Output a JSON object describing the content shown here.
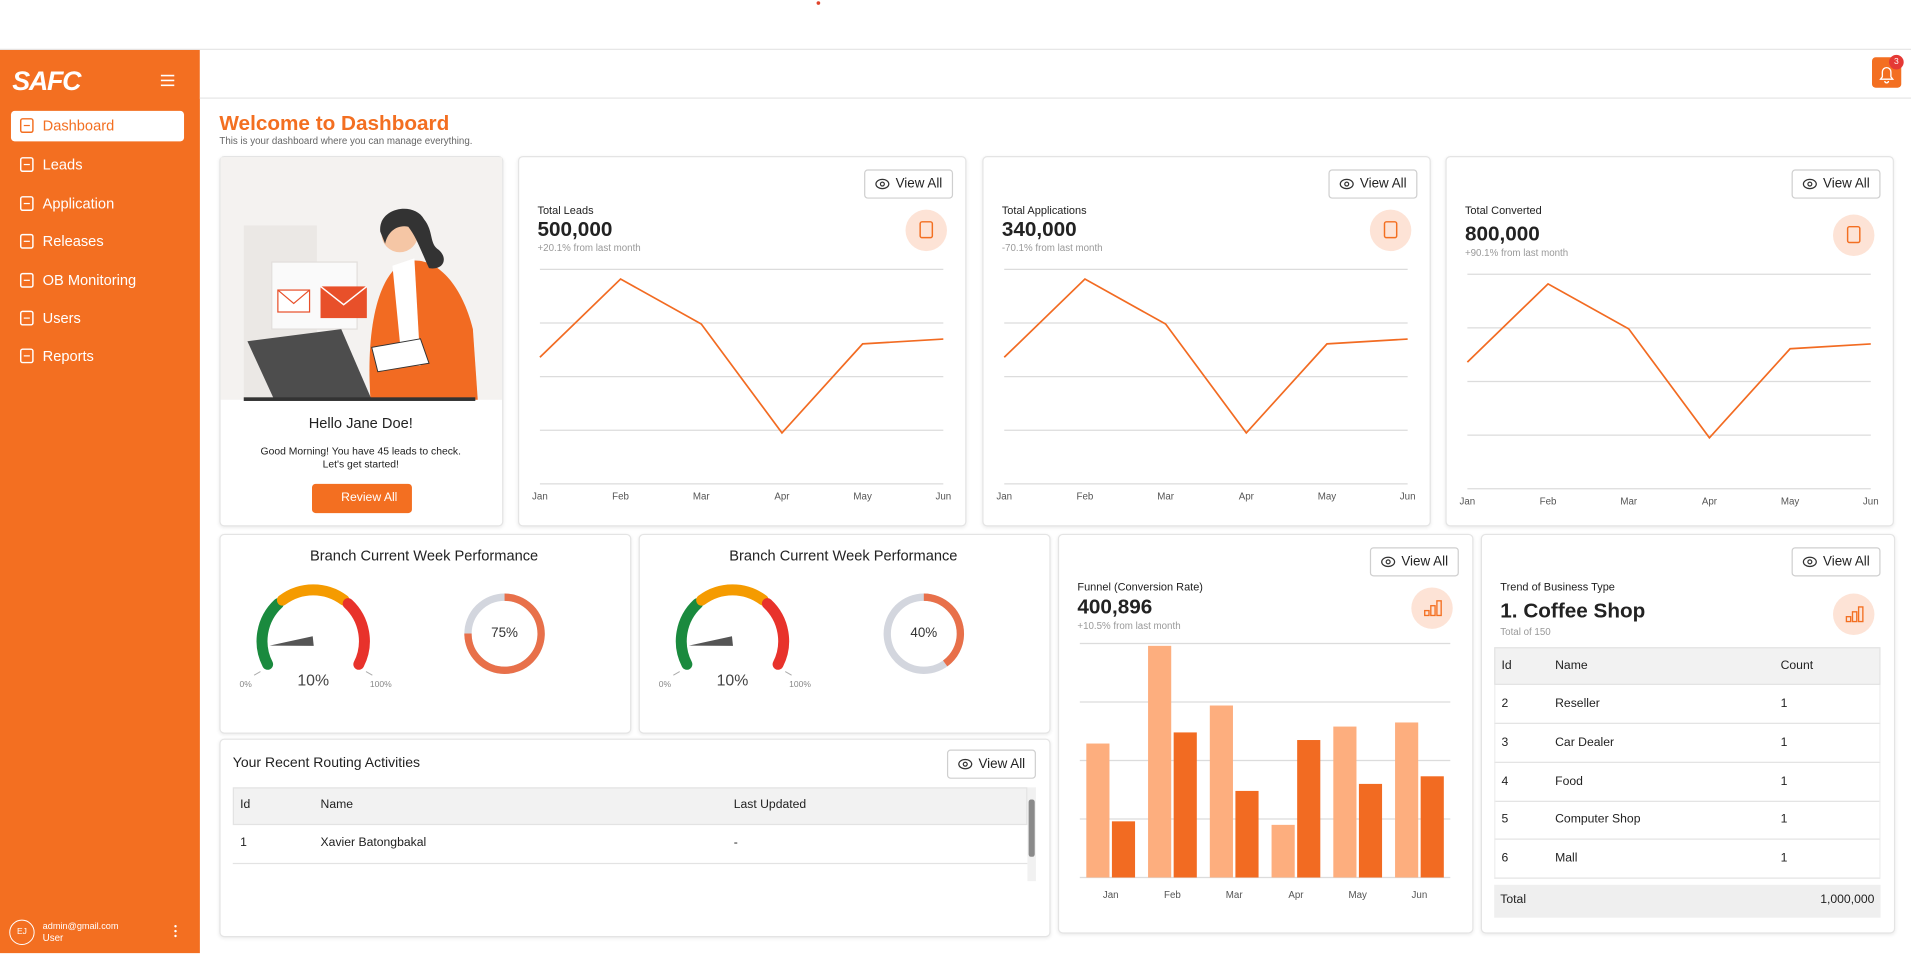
{
  "sidebar": {
    "logo": "SAFC",
    "nav": [
      "Dashboard",
      "Leads",
      "Application",
      "Releases",
      "OB Monitoring",
      "Users",
      "Reports"
    ],
    "user": {
      "initials": "EJ",
      "email": "admin@gmail.com",
      "role": "User"
    }
  },
  "header": {
    "notifications": 3
  },
  "welcome": {
    "title": "Welcome to Dashboard",
    "subtitle": "This is your dashboard where you can manage everything."
  },
  "hello": {
    "greeting": "Hello Jane Doe!",
    "message": [
      "Good Morning! You have 45 leads to check.",
      "Let's get started!"
    ],
    "button": "Review All"
  },
  "stats": [
    {
      "label": "Total Leads",
      "value": "500,000",
      "change": "+20.1% from last month",
      "button": "View All",
      "chart_data": {
        "type": "line",
        "categories": [
          "Jan",
          "Feb",
          "Mar",
          "Apr",
          "May",
          "Jun"
        ],
        "values": [
          236,
          382,
          298,
          95,
          261,
          270
        ],
        "color": "#f26b22",
        "ylim": [
          0,
          400
        ],
        "yticks": [
          0,
          100,
          200,
          300,
          400
        ],
        "grid": true
      }
    },
    {
      "label": "Total Applications",
      "value": "340,000",
      "change": "-70.1% from last month",
      "button": "View All",
      "chart_data": {
        "type": "line",
        "categories": [
          "Jan",
          "Feb",
          "Mar",
          "Apr",
          "May",
          "Jun"
        ],
        "values": [
          236,
          382,
          298,
          95,
          261,
          270
        ],
        "color": "#f26b22",
        "ylim": [
          0,
          400
        ],
        "yticks": [
          0,
          100,
          200,
          300,
          400
        ],
        "grid": true
      }
    },
    {
      "label": "Total Converted",
      "value": "800,000",
      "change": "+90.1% from last month",
      "button": "View All",
      "chart_data": {
        "type": "line",
        "categories": [
          "Jan",
          "Feb",
          "Mar",
          "Apr",
          "May",
          "Jun"
        ],
        "values": [
          236,
          382,
          298,
          95,
          261,
          270
        ],
        "color": "#f26b22",
        "ylim": [
          0,
          400
        ],
        "yticks": [
          0,
          100,
          200,
          300,
          400
        ],
        "grid": true
      }
    }
  ],
  "gauges": [
    {
      "title": "Branch Current Week Performance",
      "chart_data": [
        {
          "type": "gauge",
          "value": 10,
          "value_label": "10%",
          "ylim": [
            0,
            100
          ],
          "yticks": [
            {
              "value": 0,
              "label": "0%"
            },
            {
              "value": 100,
              "label": "100%"
            }
          ],
          "colors": [
            "#1a8a3e",
            "#f59b00",
            "#e8322b"
          ]
        },
        {
          "type": "donut",
          "value": 75,
          "value_label": "75%",
          "color": "#e8704a"
        }
      ]
    },
    {
      "title": "Branch Current Week Performance",
      "chart_data": [
        {
          "type": "gauge",
          "value": 10,
          "value_label": "10%",
          "ylim": [
            0,
            100
          ],
          "yticks": [
            {
              "value": 0,
              "label": "0%"
            },
            {
              "value": 100,
              "label": "100%"
            }
          ],
          "colors": [
            "#1a8a3e",
            "#f59b00",
            "#e8322b"
          ]
        },
        {
          "type": "donut",
          "value": 40,
          "value_label": "40%",
          "color": "#e8704a"
        }
      ]
    }
  ],
  "routing": {
    "title": "Your Recent Routing Activities",
    "button": "View All",
    "columns": [
      "Id",
      "Name",
      "Last Updated"
    ],
    "rows": [
      [
        "1",
        "Xavier Batongbakal",
        "-"
      ]
    ]
  },
  "funnel": {
    "label": "Funnel (Conversion Rate)",
    "value": "400,896",
    "change": "+10.5% from last month",
    "button": "View All",
    "chart_data": {
      "type": "bar",
      "categories": [
        "Jan",
        "Feb",
        "Mar",
        "Apr",
        "May",
        "Jun"
      ],
      "series": [
        {
          "color": "#fdae7e",
          "values": [
            229,
            396,
            294,
            90,
            258,
            265
          ]
        },
        {
          "color": "#f26b22",
          "values": [
            96,
            248,
            148,
            235,
            160,
            173
          ]
        }
      ],
      "ylim": [
        0,
        400
      ],
      "yticks": [
        0,
        100,
        200,
        300,
        400
      ],
      "grid": true
    }
  },
  "trend": {
    "label": "Trend of Business Type",
    "title": "1. Coffee Shop",
    "subtitle": "Total of 150",
    "button": "View All",
    "columns": [
      "Id",
      "Name",
      "Count"
    ],
    "rows": [
      [
        "2",
        "Reseller",
        "1"
      ],
      [
        "3",
        "Car Dealer",
        "1"
      ],
      [
        "4",
        "Food",
        "1"
      ],
      [
        "5",
        "Computer Shop",
        "1"
      ],
      [
        "6",
        "Mall",
        "1"
      ]
    ],
    "footer": [
      "Total",
      "1,000,000"
    ]
  }
}
